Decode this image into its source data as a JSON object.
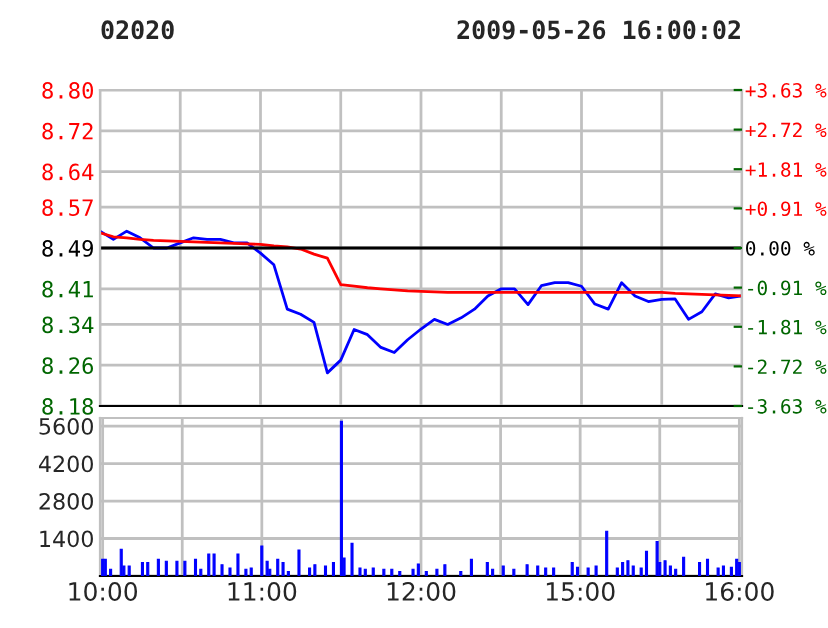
{
  "chart_data": [
    {
      "type": "line",
      "title": "02020",
      "subtitle": "2009-05-26 16:00:02",
      "tick_labels": "y",
      "grid": true,
      "legend": false,
      "categories": [
        null,
        null,
        null,
        null,
        null,
        null,
        null,
        null,
        null,
        null,
        null,
        null,
        null,
        null,
        null,
        null,
        null,
        null,
        null,
        null,
        null,
        null,
        null,
        null,
        null,
        null,
        null,
        null,
        null,
        null,
        null,
        null,
        null,
        null,
        null,
        null,
        null,
        null,
        null,
        null,
        null,
        null,
        null,
        null,
        null,
        null,
        null,
        null,
        null
      ],
      "ylim": [
        8.18,
        8.8
      ],
      "yticks": [
        8.18,
        8.26,
        8.34,
        8.41,
        8.49,
        8.57,
        8.64,
        8.72,
        {
          "value": 8.8,
          "label": "8.80"
        }
      ],
      "y2lim": [
        -3.63,
        3.63
      ],
      "y2ticks": [
        {
          "value": -3.63,
          "label": "-3.63 %"
        },
        {
          "value": -2.72,
          "label": "-2.72 %"
        },
        {
          "value": -1.81,
          "label": "-1.81 %"
        },
        {
          "value": -0.91,
          "label": "-0.91 %"
        },
        {
          "value": 0,
          "label": "0.00 %"
        },
        {
          "value": 0.91,
          "label": "+0.91 %"
        },
        {
          "value": 1.81,
          "label": "+1.81 %"
        },
        {
          "value": 2.72,
          "label": "+2.72 %"
        },
        {
          "value": 3.63,
          "label": "+3.63 %"
        }
      ],
      "ref_lines": [
        {
          "axis": "y",
          "value": 8.49,
          "label": null,
          "color": "#000000"
        }
      ],
      "series": [
        {
          "color": "#0000ff",
          "values": [
            8.523,
            8.507,
            8.523,
            8.51,
            8.49,
            8.49,
            8.5,
            8.51,
            8.507,
            8.507,
            8.5,
            8.5,
            8.48,
            8.457,
            8.37,
            8.36,
            8.344,
            8.245,
            8.27,
            8.33,
            8.32,
            8.295,
            8.285,
            8.31,
            8.331,
            8.35,
            8.34,
            8.353,
            8.37,
            8.396,
            8.41,
            8.41,
            8.379,
            8.416,
            8.422,
            8.422,
            8.415,
            8.38,
            8.37,
            8.422,
            8.396,
            8.385,
            8.389,
            8.39,
            8.35,
            8.365,
            8.4,
            8.392,
            8.396
          ]
        },
        {
          "color": "#ff0000",
          "values": [
            8.52,
            8.512,
            8.51,
            8.507,
            8.505,
            8.504,
            8.503,
            8.502,
            8.501,
            8.5,
            8.499,
            8.498,
            8.497,
            8.494,
            8.492,
            8.488,
            8.478,
            8.47,
            8.418,
            8.415,
            8.412,
            8.41,
            8.408,
            8.406,
            8.405,
            8.404,
            8.403,
            8.403,
            8.403,
            8.403,
            8.403,
            8.403,
            8.403,
            8.403,
            8.403,
            8.403,
            8.403,
            8.403,
            8.403,
            8.403,
            8.403,
            8.403,
            8.403,
            8.401,
            8.4,
            8.399,
            8.398,
            8.397,
            8.396
          ]
        }
      ]
    },
    {
      "type": "bar",
      "grid": true,
      "legend": false,
      "categories": [
        "10:00",
        null,
        null,
        null,
        null,
        null,
        null,
        null,
        null,
        null,
        null,
        null,
        null,
        null,
        null,
        null,
        null,
        null,
        null,
        null,
        null,
        null,
        null,
        null,
        null,
        null,
        null,
        null,
        null,
        null,
        null,
        null,
        null,
        null,
        null,
        null,
        null,
        null,
        null,
        null,
        null,
        null,
        null,
        null,
        null,
        null,
        null,
        null,
        null,
        null,
        null,
        null,
        null,
        null,
        null,
        null,
        null,
        null,
        null,
        null,
        "11:00",
        null,
        null,
        null,
        null,
        null,
        null,
        null,
        null,
        null,
        null,
        null,
        null,
        null,
        null,
        null,
        null,
        null,
        null,
        null,
        null,
        null,
        null,
        null,
        null,
        null,
        null,
        null,
        null,
        null,
        null,
        null,
        null,
        null,
        null,
        null,
        null,
        null,
        null,
        null,
        null,
        null,
        null,
        null,
        null,
        null,
        null,
        null,
        null,
        null,
        null,
        null,
        null,
        null,
        null,
        null,
        null,
        null,
        null,
        null,
        "12:00",
        null,
        null,
        null,
        null,
        null,
        null,
        null,
        null,
        null,
        null,
        null,
        null,
        null,
        null,
        null,
        null,
        null,
        null,
        null,
        null,
        null,
        null,
        null,
        null,
        null,
        null,
        null,
        null,
        null,
        null,
        null,
        null,
        null,
        null,
        null,
        null,
        null,
        null,
        null,
        null,
        null,
        null,
        null,
        null,
        null,
        null,
        null,
        null,
        null,
        null,
        null,
        null,
        null,
        null,
        null,
        null,
        null,
        null,
        null,
        "15:00",
        null,
        null,
        null,
        null,
        null,
        null,
        null,
        null,
        null,
        null,
        null,
        null,
        null,
        null,
        null,
        null,
        null,
        null,
        null,
        null,
        null,
        null,
        null,
        null,
        null,
        null,
        null,
        null,
        null,
        null,
        null,
        null,
        null,
        null,
        null,
        null,
        null,
        null,
        null,
        null,
        null,
        null,
        null,
        null,
        null,
        null,
        null,
        null,
        null,
        null,
        null,
        null,
        null,
        null,
        null,
        null,
        null,
        null,
        null,
        "16:00"
      ],
      "ylim": [
        0,
        5900
      ],
      "yticks": [
        {
          "value": 0,
          "label": null
        },
        1400,
        2800,
        4200,
        5600
      ],
      "series": [
        {
          "color": "#0000ff",
          "values": [
            620,
            620,
            null,
            250,
            null,
            null,
            null,
            1000,
            370,
            null,
            370,
            null,
            null,
            null,
            null,
            500,
            null,
            500,
            null,
            null,
            null,
            620,
            null,
            null,
            550,
            null,
            null,
            null,
            550,
            null,
            null,
            550,
            null,
            null,
            null,
            620,
            null,
            250,
            null,
            null,
            820,
            null,
            820,
            null,
            null,
            420,
            null,
            null,
            300,
            null,
            null,
            820,
            null,
            null,
            250,
            null,
            300,
            null,
            null,
            null,
            1120,
            null,
            550,
            250,
            null,
            null,
            620,
            null,
            500,
            null,
            170,
            null,
            null,
            null,
            970,
            null,
            null,
            null,
            300,
            null,
            420,
            null,
            null,
            null,
            370,
            null,
            null,
            500,
            null,
            null,
            5780,
            670,
            null,
            null,
            1220,
            null,
            null,
            300,
            null,
            250,
            null,
            null,
            300,
            null,
            null,
            null,
            250,
            null,
            null,
            250,
            null,
            null,
            170,
            null,
            null,
            null,
            null,
            250,
            null,
            450,
            null,
            null,
            170,
            null,
            null,
            null,
            250,
            null,
            null,
            420,
            null,
            null,
            null,
            null,
            null,
            170,
            null,
            null,
            null,
            620,
            null,
            null,
            null,
            null,
            null,
            500,
            null,
            250,
            null,
            null,
            null,
            370,
            null,
            null,
            null,
            250,
            null,
            null,
            null,
            null,
            420,
            null,
            null,
            null,
            370,
            null,
            null,
            300,
            null,
            null,
            300,
            null,
            null,
            null,
            null,
            null,
            null,
            500,
            null,
            320,
            null,
            null,
            null,
            300,
            null,
            null,
            370,
            null,
            null,
            null,
            1670,
            null,
            null,
            null,
            300,
            null,
            500,
            null,
            570,
            null,
            370,
            null,
            null,
            300,
            null,
            920,
            null,
            null,
            null,
            1290,
            500,
            null,
            570,
            null,
            370,
            null,
            250,
            null,
            null,
            700,
            null,
            null,
            null,
            null,
            null,
            500,
            null,
            null,
            620,
            null,
            null,
            null,
            300,
            null,
            370,
            null,
            null,
            320,
            null,
            620,
            500
          ]
        }
      ]
    }
  ]
}
